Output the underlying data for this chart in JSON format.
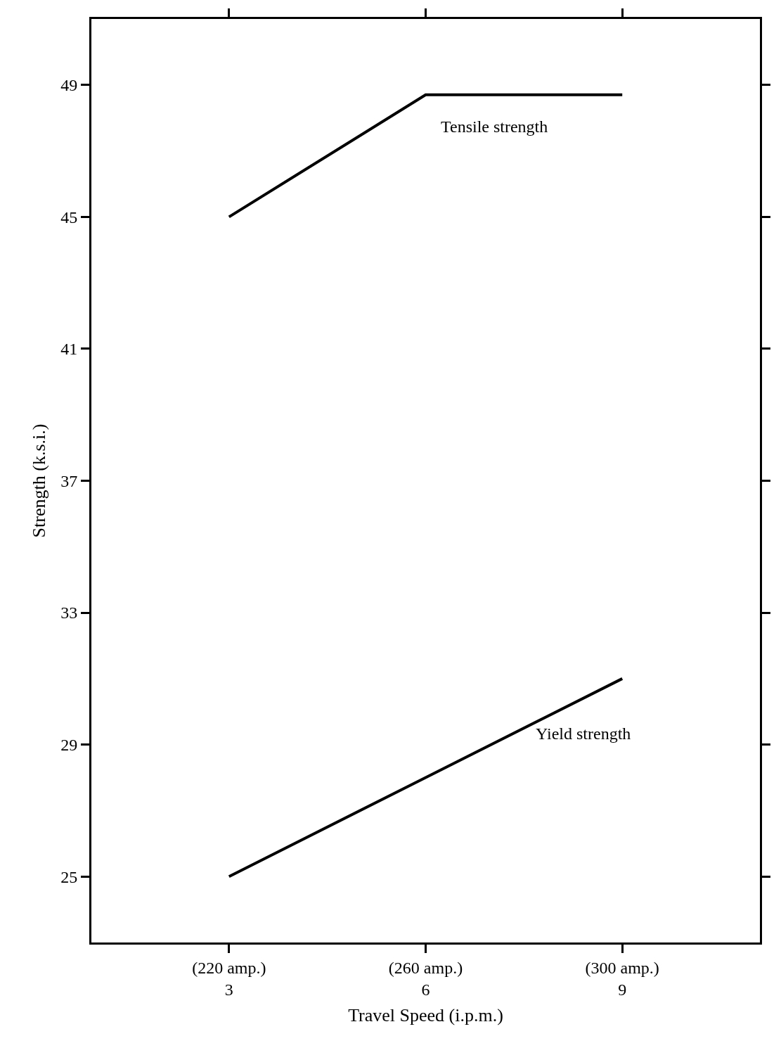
{
  "chart_data": {
    "type": "line",
    "xlabel": "Travel Speed (i.p.m.)",
    "ylabel": "Strength (k.s.i.)",
    "categories": [
      "(220 amp.)\n3",
      "(260 amp.)\n6",
      "(300 amp.)\n9"
    ],
    "series": [
      {
        "name": "Tensile strength",
        "color": "#000000",
        "values": [
          45,
          48.7,
          48.7
        ]
      },
      {
        "name": "Yield strength",
        "color": "#000000",
        "values": [
          25,
          28,
          31
        ]
      }
    ],
    "ylim": [
      23,
      51
    ],
    "yticks": [
      25,
      29,
      33,
      37,
      41,
      45,
      49
    ],
    "legend": false,
    "marker": "none",
    "line_style": "solid"
  }
}
